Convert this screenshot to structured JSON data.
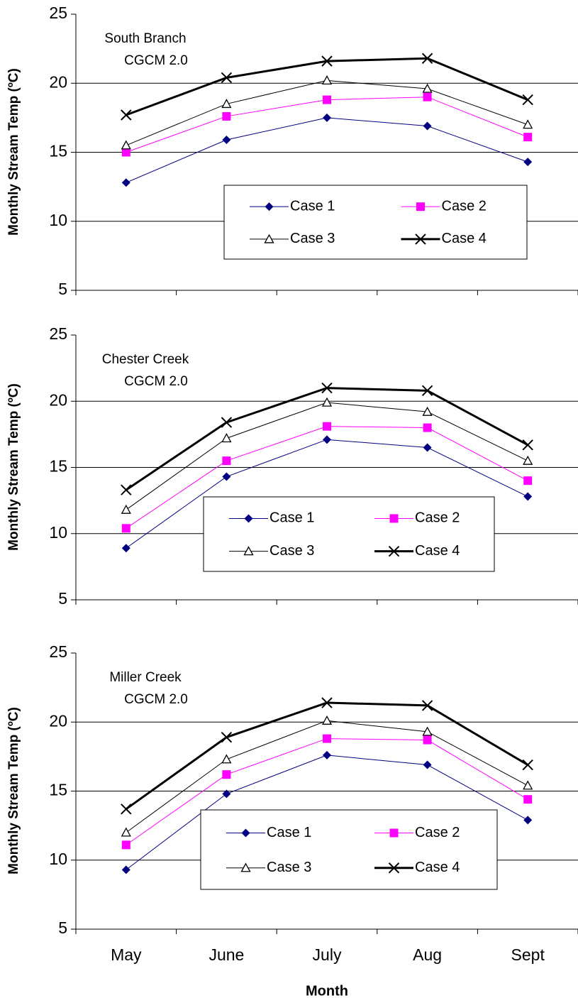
{
  "chart_data": [
    {
      "type": "line",
      "ylabel": "Monthly Stream Temp (ºC)",
      "annotation": [
        "South Branch",
        "CGCM 2.0"
      ],
      "ylim": [
        5,
        25
      ],
      "yticks": [
        5,
        10,
        15,
        20,
        25
      ],
      "grid": true,
      "series": [
        {
          "name": "Case 1",
          "color": "#000080",
          "marker": "diamond",
          "line_width": 1,
          "values": [
            12.8,
            15.9,
            17.5,
            16.9,
            14.3
          ]
        },
        {
          "name": "Case 2",
          "color": "#ff00ff",
          "marker": "square",
          "line_width": 1,
          "values": [
            15.0,
            17.6,
            18.8,
            19.0,
            16.1
          ]
        },
        {
          "name": "Case 3",
          "color": "#000000",
          "marker": "triangle",
          "line_width": 1,
          "values": [
            15.5,
            18.5,
            20.2,
            19.6,
            17.0
          ]
        },
        {
          "name": "Case 4",
          "color": "#000000",
          "marker": "x",
          "line_width": 3,
          "values": [
            17.7,
            20.4,
            21.6,
            21.8,
            18.8
          ]
        }
      ]
    },
    {
      "type": "line",
      "ylabel": "Monthly Stream Temp (ºC)",
      "annotation": [
        "Chester Creek",
        "CGCM 2.0"
      ],
      "ylim": [
        5,
        25
      ],
      "yticks": [
        5,
        10,
        15,
        20,
        25
      ],
      "grid": true,
      "series": [
        {
          "name": "Case 1",
          "color": "#000080",
          "marker": "diamond",
          "line_width": 1,
          "values": [
            8.9,
            14.3,
            17.1,
            16.5,
            12.8
          ]
        },
        {
          "name": "Case 2",
          "color": "#ff00ff",
          "marker": "square",
          "line_width": 1,
          "values": [
            10.4,
            15.5,
            18.1,
            18.0,
            14.0
          ]
        },
        {
          "name": "Case 3",
          "color": "#000000",
          "marker": "triangle",
          "line_width": 1,
          "values": [
            11.8,
            17.2,
            19.9,
            19.2,
            15.5
          ]
        },
        {
          "name": "Case 4",
          "color": "#000000",
          "marker": "x",
          "line_width": 3,
          "values": [
            13.3,
            18.4,
            21.0,
            20.8,
            16.7
          ]
        }
      ]
    },
    {
      "type": "line",
      "ylabel": "Monthly Stream Temp (ºC)",
      "annotation": [
        "Miller Creek",
        "CGCM 2.0"
      ],
      "xlabel": "Month",
      "categories": [
        "May",
        "June",
        "July",
        "Aug",
        "Sept"
      ],
      "ylim": [
        5,
        25
      ],
      "yticks": [
        5,
        10,
        15,
        20,
        25
      ],
      "grid": true,
      "series": [
        {
          "name": "Case 1",
          "color": "#000080",
          "marker": "diamond",
          "line_width": 1,
          "values": [
            9.3,
            14.8,
            17.6,
            16.9,
            12.9
          ]
        },
        {
          "name": "Case 2",
          "color": "#ff00ff",
          "marker": "square",
          "line_width": 1,
          "values": [
            11.1,
            16.2,
            18.8,
            18.7,
            14.4
          ]
        },
        {
          "name": "Case 3",
          "color": "#000000",
          "marker": "triangle",
          "line_width": 1,
          "values": [
            12.0,
            17.3,
            20.1,
            19.3,
            15.4
          ]
        },
        {
          "name": "Case 4",
          "color": "#000000",
          "marker": "x",
          "line_width": 3,
          "values": [
            13.7,
            18.9,
            21.4,
            21.2,
            16.9
          ]
        }
      ]
    }
  ]
}
